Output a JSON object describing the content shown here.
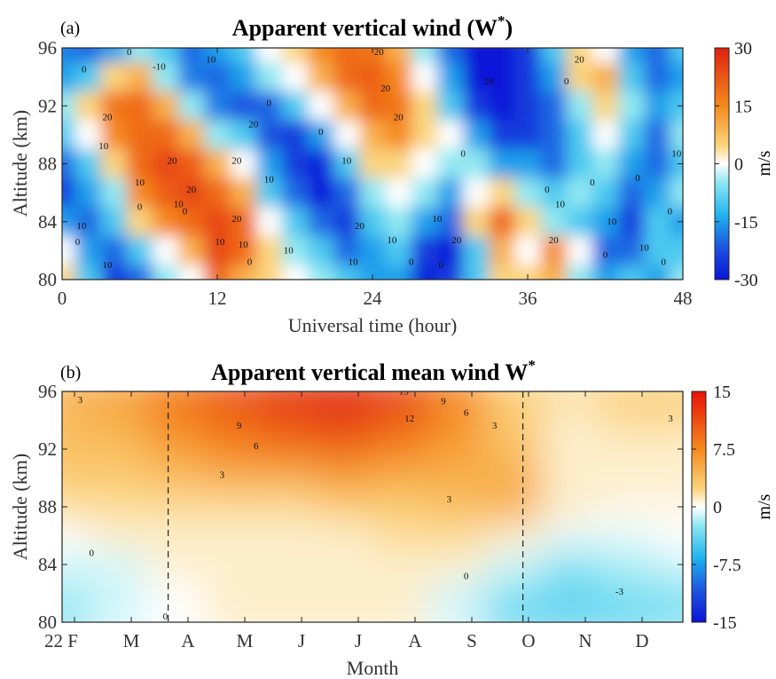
{
  "chart_data": [
    {
      "type": "heatmap",
      "panel_label": "(a)",
      "title": "Apparent vertical wind (W",
      "title_sup": "*",
      "title_suffix": ")",
      "xlabel": "Universal time (hour)",
      "ylabel": "Altitude (km)",
      "xlim": [
        0,
        48
      ],
      "ylim": [
        80,
        96
      ],
      "xticks": [
        0,
        12,
        24,
        36,
        48
      ],
      "yticks": [
        80,
        84,
        88,
        92,
        96
      ],
      "colorbar": {
        "label": "m/s",
        "range": [
          -30,
          30
        ],
        "ticks": [
          30,
          15,
          0,
          -15,
          -30
        ]
      },
      "contour_labels": [
        {
          "text": "0",
          "x": 1.7,
          "y": 94.3
        },
        {
          "text": "10",
          "x": 3.2,
          "y": 89.0
        },
        {
          "text": "20",
          "x": 3.5,
          "y": 91.0
        },
        {
          "text": "10",
          "x": 1.5,
          "y": 83.5
        },
        {
          "text": "0",
          "x": 1.2,
          "y": 82.4
        },
        {
          "text": "10",
          "x": 3.5,
          "y": 80.8
        },
        {
          "text": "10",
          "x": 6.0,
          "y": 86.5
        },
        {
          "text": "0",
          "x": 6.0,
          "y": 84.8
        },
        {
          "text": "20",
          "x": 8.5,
          "y": 88.0
        },
        {
          "text": "10",
          "x": 9.0,
          "y": 85.0
        },
        {
          "text": "20",
          "x": 10.0,
          "y": 86.0
        },
        {
          "text": "0",
          "x": 9.5,
          "y": 84.5
        },
        {
          "text": "20",
          "x": 13.5,
          "y": 84.0
        },
        {
          "text": "10",
          "x": 12.2,
          "y": 82.4
        },
        {
          "text": "10",
          "x": 14.0,
          "y": 82.2
        },
        {
          "text": "0",
          "x": 14.5,
          "y": 81.0
        },
        {
          "text": "10",
          "x": 17.5,
          "y": 81.8
        },
        {
          "text": "10",
          "x": 16.0,
          "y": 86.7
        },
        {
          "text": "20",
          "x": 13.5,
          "y": 88.0
        },
        {
          "text": "20",
          "x": 14.8,
          "y": 90.5
        },
        {
          "text": "10",
          "x": 11.5,
          "y": 95.0
        },
        {
          "text": "-10",
          "x": 7.5,
          "y": 94.5
        },
        {
          "text": "0",
          "x": 5.2,
          "y": 95.5
        },
        {
          "text": "0",
          "x": 12.0,
          "y": 96.0
        },
        {
          "text": "0",
          "x": 16.0,
          "y": 92.0
        },
        {
          "text": "0",
          "x": 20.0,
          "y": 90.0
        },
        {
          "text": "10",
          "x": 22.0,
          "y": 88.0
        },
        {
          "text": "20",
          "x": 25.0,
          "y": 93.0
        },
        {
          "text": "20",
          "x": 24.5,
          "y": 95.5
        },
        {
          "text": "20",
          "x": 26.0,
          "y": 91.0
        },
        {
          "text": "10",
          "x": 29.0,
          "y": 84.0
        },
        {
          "text": "0",
          "x": 27.0,
          "y": 81.0
        },
        {
          "text": "10",
          "x": 25.5,
          "y": 82.5
        },
        {
          "text": "20",
          "x": 23.0,
          "y": 83.5
        },
        {
          "text": "20",
          "x": 30.5,
          "y": 82.5
        },
        {
          "text": "0",
          "x": 31.0,
          "y": 88.5
        },
        {
          "text": "20",
          "x": 33.0,
          "y": 93.5
        },
        {
          "text": "0",
          "x": 37.5,
          "y": 86.0
        },
        {
          "text": "10",
          "x": 38.5,
          "y": 85.0
        },
        {
          "text": "20",
          "x": 38.0,
          "y": 82.5
        },
        {
          "text": "0",
          "x": 39.0,
          "y": 93.5
        },
        {
          "text": "0",
          "x": 41.0,
          "y": 86.5
        },
        {
          "text": "10",
          "x": 42.5,
          "y": 83.8
        },
        {
          "text": "0",
          "x": 44.5,
          "y": 86.8
        },
        {
          "text": "10",
          "x": 45.0,
          "y": 82.0
        },
        {
          "text": "0",
          "x": 46.5,
          "y": 81.0
        },
        {
          "text": "0",
          "x": 47.0,
          "y": 84.5
        },
        {
          "text": "10",
          "x": 47.5,
          "y": 88.5
        },
        {
          "text": "0",
          "x": 29.3,
          "y": 80.8
        },
        {
          "text": "10",
          "x": 22.5,
          "y": 81.0
        },
        {
          "text": "0",
          "x": 42.0,
          "y": 81.5
        },
        {
          "text": "20",
          "x": 40.0,
          "y": 95.0
        }
      ],
      "approx_field": {
        "description": "approximate W* values (m/s) on a coarse grid; rows from 96 km (top) to 80 km (bottom), columns 0 to 48 h",
        "x": [
          0,
          2,
          4,
          6,
          8,
          10,
          12,
          14,
          16,
          18,
          20,
          22,
          24,
          26,
          28,
          30,
          32,
          34,
          36,
          38,
          40,
          42,
          44,
          46,
          48
        ],
        "y": [
          96,
          94,
          92,
          90,
          88,
          86,
          84,
          82,
          80
        ],
        "z": [
          [
            -18,
            -20,
            -15,
            -5,
            -10,
            -20,
            -15,
            -10,
            0,
            5,
            15,
            20,
            18,
            10,
            -5,
            -20,
            -30,
            -30,
            -25,
            -10,
            5,
            0,
            -15,
            -20,
            -10
          ],
          [
            -15,
            -10,
            5,
            10,
            -5,
            -18,
            -20,
            -15,
            -5,
            0,
            10,
            20,
            22,
            15,
            0,
            -15,
            -30,
            -30,
            -25,
            -15,
            5,
            10,
            -10,
            -20,
            -15
          ],
          [
            -5,
            5,
            18,
            20,
            10,
            -5,
            -18,
            -22,
            -20,
            -10,
            0,
            10,
            20,
            18,
            5,
            -10,
            -25,
            -30,
            -25,
            -20,
            -5,
            5,
            -5,
            -15,
            -10
          ],
          [
            -10,
            0,
            15,
            20,
            20,
            10,
            -5,
            -10,
            -22,
            -25,
            -15,
            0,
            10,
            15,
            5,
            0,
            -15,
            -25,
            -25,
            -20,
            -10,
            0,
            -10,
            -20,
            -5
          ],
          [
            -20,
            -10,
            5,
            20,
            25,
            22,
            10,
            0,
            -15,
            -25,
            -28,
            -10,
            5,
            5,
            0,
            -5,
            -5,
            -15,
            -15,
            -20,
            -10,
            -5,
            -15,
            -20,
            -10
          ],
          [
            -25,
            -15,
            -5,
            15,
            22,
            25,
            20,
            10,
            -10,
            -20,
            -30,
            -20,
            -5,
            0,
            -5,
            -15,
            0,
            5,
            -5,
            -10,
            -5,
            -10,
            -20,
            -15,
            -5
          ],
          [
            -15,
            -20,
            -10,
            5,
            15,
            20,
            25,
            20,
            0,
            -10,
            -20,
            -25,
            -10,
            -5,
            -15,
            -20,
            5,
            20,
            5,
            -5,
            -10,
            -15,
            -25,
            -10,
            -15
          ],
          [
            0,
            -15,
            -20,
            -10,
            0,
            10,
            25,
            20,
            5,
            -5,
            -10,
            -20,
            -15,
            -10,
            -25,
            -30,
            -10,
            10,
            0,
            15,
            0,
            -20,
            -20,
            -10,
            -10
          ],
          [
            5,
            -10,
            -25,
            -20,
            -5,
            0,
            20,
            10,
            5,
            0,
            -5,
            -10,
            -15,
            -15,
            -28,
            -25,
            -10,
            5,
            5,
            10,
            -5,
            -15,
            -10,
            -15,
            -5
          ]
        ]
      }
    },
    {
      "type": "heatmap",
      "panel_label": "(b)",
      "title": "Apparent vertical mean wind W",
      "title_sup": "*",
      "xlabel": "Month",
      "ylabel": "Altitude (km)",
      "ylim": [
        80,
        96
      ],
      "yticks": [
        80,
        84,
        88,
        92,
        96
      ],
      "xtick_labels": [
        "22 F",
        "M",
        "A",
        "M",
        "J",
        "J",
        "A",
        "S",
        "O",
        "N",
        "D"
      ],
      "dashed_lines_month": [
        "mid-March",
        "end of September"
      ],
      "colorbar": {
        "label": "m/s",
        "range": [
          -15,
          15
        ],
        "ticks": [
          15,
          7.5,
          0,
          -7.5,
          -15
        ]
      },
      "contour_labels": [
        {
          "text": "3",
          "x": 0.1,
          "y": 95.2
        },
        {
          "text": "0",
          "x": 0.3,
          "y": 84.6
        },
        {
          "text": "0",
          "x": 1.6,
          "y": 80.2
        },
        {
          "text": "9",
          "x": 2.9,
          "y": 93.4
        },
        {
          "text": "6",
          "x": 3.2,
          "y": 92.0
        },
        {
          "text": "3",
          "x": 2.6,
          "y": 90.0
        },
        {
          "text": "15",
          "x": 5.8,
          "y": 95.8
        },
        {
          "text": "12",
          "x": 5.9,
          "y": 93.9
        },
        {
          "text": "9",
          "x": 6.5,
          "y": 95.1
        },
        {
          "text": "6",
          "x": 6.9,
          "y": 94.3
        },
        {
          "text": "3",
          "x": 7.4,
          "y": 93.4
        },
        {
          "text": "3",
          "x": 6.6,
          "y": 88.3
        },
        {
          "text": "0",
          "x": 6.9,
          "y": 83.0
        },
        {
          "text": "-3",
          "x": 9.6,
          "y": 81.9
        },
        {
          "text": "-3",
          "x": 10.8,
          "y": 81.9
        },
        {
          "text": "3",
          "x": 10.5,
          "y": 93.9
        },
        {
          "text": "0",
          "x": 10.9,
          "y": 85.3
        }
      ],
      "approx_field": {
        "description": "approximate mean W* (m/s); rows 96 km (top) to 80 km (bottom), columns = months Feb..Dec",
        "x": [
          "F",
          "M",
          "A",
          "M",
          "J",
          "J",
          "A",
          "S",
          "O",
          "N",
          "D",
          "end"
        ],
        "y": [
          96,
          94,
          92,
          90,
          88,
          86,
          84,
          82,
          80
        ],
        "z": [
          [
            5,
            6,
            9,
            12,
            14,
            15,
            13,
            8,
            3,
            2,
            3,
            3
          ],
          [
            4,
            5,
            8,
            10,
            12,
            13,
            11,
            7,
            3,
            1,
            2,
            2
          ],
          [
            4,
            4,
            6,
            8,
            9,
            10,
            8,
            6,
            4,
            1,
            1,
            1
          ],
          [
            3,
            3,
            4,
            5,
            5,
            6,
            5,
            5,
            5,
            1,
            1,
            1
          ],
          [
            2,
            2,
            2,
            2,
            2,
            3,
            3,
            4,
            5,
            1,
            0.5,
            0.5
          ],
          [
            0,
            1,
            1,
            1,
            1,
            1,
            2,
            2,
            1,
            -0.5,
            -0.5,
            0
          ],
          [
            -1,
            -1,
            1,
            1,
            1,
            1,
            1,
            1,
            -1,
            -3,
            -2,
            -1
          ],
          [
            -2,
            -1,
            0,
            1,
            1,
            1,
            1,
            -1,
            -3,
            -4,
            -3,
            -3
          ],
          [
            -3,
            -1,
            0,
            1,
            1,
            1,
            1,
            -1,
            -4,
            -4,
            -4,
            -3
          ]
        ]
      }
    }
  ]
}
